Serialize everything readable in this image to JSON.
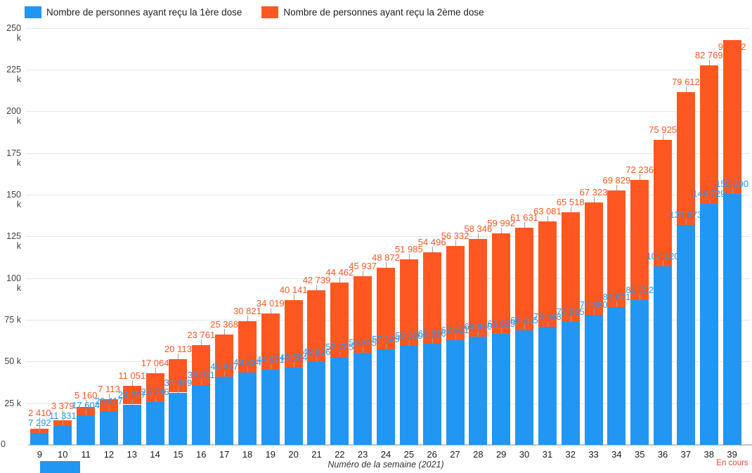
{
  "legend": [
    {
      "label": "Nombre de personnes ayant reçu la 1ère dose",
      "color": "#2196F3"
    },
    {
      "label": "Nombre de personnes ayant reçu la 2ème dose",
      "color": "#FF5722"
    }
  ],
  "x_axis": {
    "title": "Numéro de la semaine (2021)",
    "note": "En cours",
    "note_color": "#EA4335"
  },
  "y_axis": {
    "tick_labels": [
      "0",
      "25 k",
      "50 k",
      "75 k",
      "100 k",
      "125 k",
      "150 k",
      "175 k",
      "200 k",
      "225 k",
      "250 k"
    ],
    "min": 0,
    "max": 250000,
    "step": 25000
  },
  "chart_data": {
    "type": "bar",
    "stacked": true,
    "title": "",
    "xlabel": "Numéro de la semaine (2021)",
    "ylabel": "",
    "ylim": [
      0,
      250000
    ],
    "grid": true,
    "legend_position": "top",
    "categories": [
      9,
      10,
      11,
      12,
      13,
      14,
      15,
      16,
      17,
      18,
      19,
      20,
      21,
      22,
      23,
      24,
      25,
      26,
      27,
      28,
      29,
      30,
      31,
      32,
      33,
      34,
      35,
      36,
      37,
      38,
      39
    ],
    "series": [
      {
        "name": "Nombre de personnes ayant reçu la 1ère dose",
        "color": "#2196F3",
        "values": [
          7292,
          11331,
          17604,
          20417,
          24227,
          25746,
          31389,
          36011,
          40917,
          43334,
          44971,
          46554,
          49926,
          52795,
          55315,
          57149,
          59360,
          60816,
          62821,
          64980,
          66669,
          68655,
          70948,
          73915,
          77880,
          82671,
          86752,
          107120,
          131873,
          144729,
          150390
        ]
      },
      {
        "name": "Nombre de personnes ayant reçu la 2ème dose",
        "color": "#FF5722",
        "values": [
          2410,
          3379,
          5160,
          7113,
          11051,
          17064,
          20113,
          23761,
          25368,
          30821,
          34019,
          40141,
          42739,
          44462,
          45937,
          48872,
          51985,
          54496,
          56332,
          58346,
          59992,
          61631,
          63081,
          65518,
          67323,
          69829,
          72236,
          75925,
          79612,
          82769,
          92512
        ]
      }
    ],
    "last_category_note": "En cours"
  },
  "colors": {
    "dose1": "#2196F3",
    "dose2": "#FF5722",
    "en_cours": "#EA4335",
    "grid": "#e6e6e6",
    "stem": "#9e9e9e"
  }
}
